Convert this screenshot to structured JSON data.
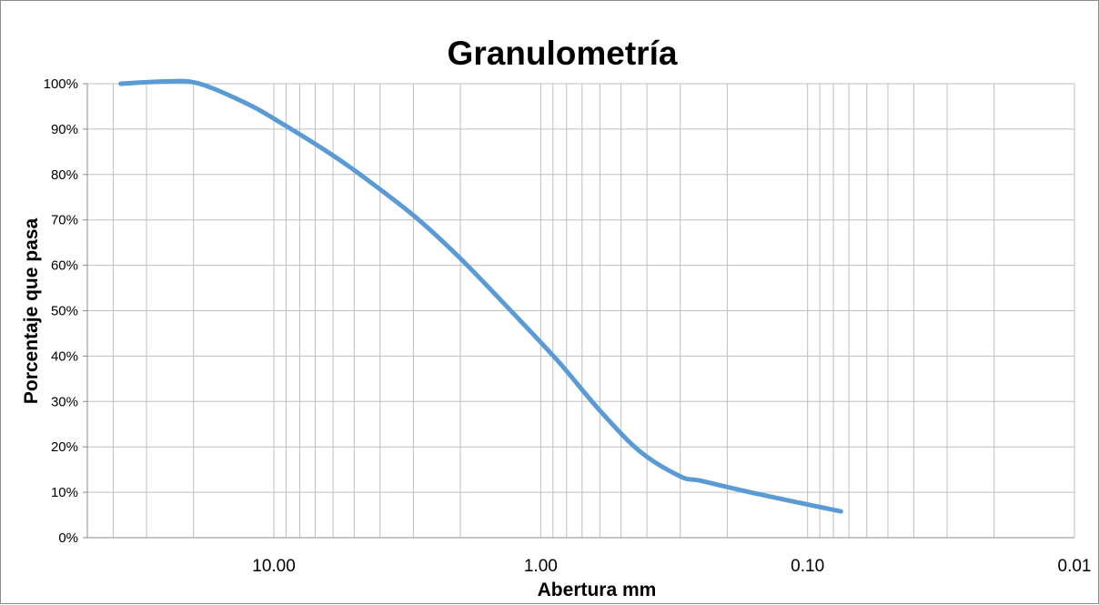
{
  "chart_data": {
    "type": "line",
    "title": "Granulometría",
    "xlabel": "Abertura mm",
    "ylabel": "Porcentaje que pasa",
    "x_scale": "log",
    "x_reversed": true,
    "xlim": [
      50.0,
      0.01
    ],
    "ylim": [
      0,
      100
    ],
    "y_ticks": [
      0,
      10,
      20,
      30,
      40,
      50,
      60,
      70,
      80,
      90,
      100
    ],
    "y_tick_labels": [
      "0%",
      "10%",
      "20%",
      "30%",
      "40%",
      "50%",
      "60%",
      "70%",
      "80%",
      "90%",
      "100%"
    ],
    "x_ticks": [
      10,
      1,
      0.1,
      0.01
    ],
    "x_tick_labels": [
      "10.00",
      "1.00",
      "0.10",
      "0.01"
    ],
    "grid": true,
    "legend": "none",
    "series": [
      {
        "color": "#5b9bd5",
        "x": [
          37.5,
          25,
          19,
          12.5,
          9.5,
          6.3,
          4.75,
          3.0,
          2.0,
          1.18,
          0.85,
          0.6,
          0.425,
          0.3,
          0.25,
          0.15,
          0.075
        ],
        "y": [
          100,
          100.5,
          100,
          95.5,
          91.5,
          85,
          80,
          71,
          61.5,
          47.5,
          38.5,
          28,
          19,
          13.5,
          12.5,
          9.5,
          5.8
        ]
      }
    ]
  }
}
